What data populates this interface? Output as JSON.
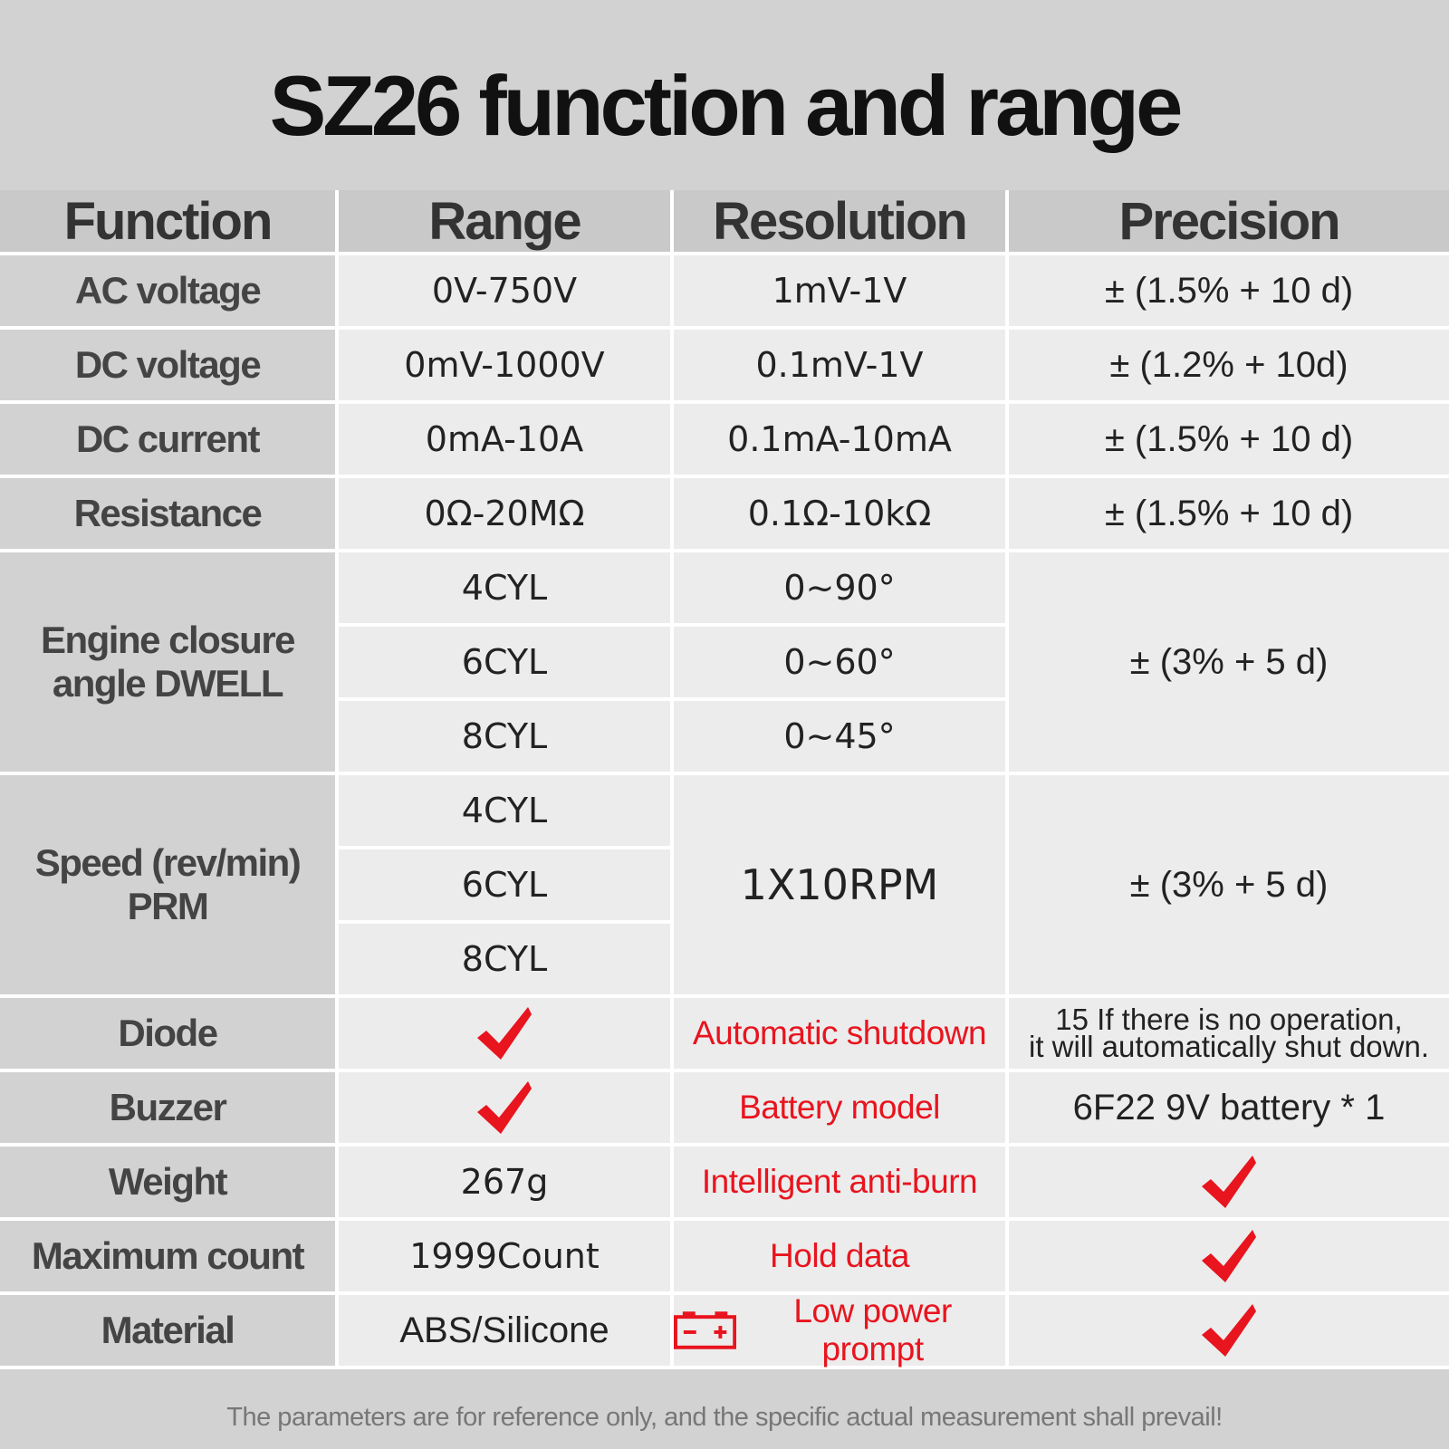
{
  "title": "SZ26 function and range",
  "headers": {
    "function": "Function",
    "range": "Range",
    "resolution": "Resolution",
    "precision": "Precision"
  },
  "rows": [
    {
      "function": "AC voltage",
      "range": "0V-750V",
      "resolution": "1mV-1V",
      "precision": "± (1.5%  + 10 d)"
    },
    {
      "function": "DC voltage",
      "range": "0mV-1000V",
      "resolution": "0.1mV-1V",
      "precision": "± (1.2% + 10d)"
    },
    {
      "function": "DC current",
      "range": "0mA-10A",
      "resolution": "0.1mA-10mA",
      "precision": "± (1.5% + 10 d)"
    },
    {
      "function": "Resistance",
      "range": "0Ω-20MΩ",
      "resolution": "0.1Ω-10kΩ",
      "precision": "± (1.5%  + 10 d)"
    }
  ],
  "dwell": {
    "function_line1": "Engine closure",
    "function_line2": "angle DWELL",
    "ranges": [
      "4CYL",
      "6CYL",
      "8CYL"
    ],
    "resolutions": [
      "0~90°",
      "0~60°",
      "0~45°"
    ],
    "precision": "± (3%  + 5 d)"
  },
  "speed": {
    "function_line1": "Speed (rev/min)",
    "function_line2": "PRM",
    "ranges": [
      "4CYL",
      "6CYL",
      "8CYL"
    ],
    "resolution": "1X10RPM",
    "precision": "± (3% + 5 d)"
  },
  "extras": [
    {
      "function": "Diode",
      "range": "check",
      "feature": "Automatic shutdown",
      "value_line1": "15 If there is no operation,",
      "value_line2": "it will automatically shut down."
    },
    {
      "function": "Buzzer",
      "range": "check",
      "feature": "Battery model",
      "value_line1": "6F22 9V battery * 1",
      "value_line2": ""
    },
    {
      "function": "Weight",
      "range": "267g",
      "feature": "Intelligent anti-burn",
      "value_line1": "check",
      "value_line2": ""
    },
    {
      "function": "Maximum count",
      "range": "1999Count",
      "feature": "Hold data",
      "value_line1": "check",
      "value_line2": ""
    },
    {
      "function": "Material",
      "range": "ABS/Silicone",
      "feature": "Low power prompt",
      "value_line1": "check",
      "value_line2": ""
    }
  ],
  "footer": "The parameters are for reference only, and the specific actual measurement shall prevail!",
  "colors": {
    "accent_red": "#e8141e",
    "checkmark": "#e8141e"
  },
  "icons": {
    "check": "checkmark-icon",
    "battery": "battery-icon"
  }
}
